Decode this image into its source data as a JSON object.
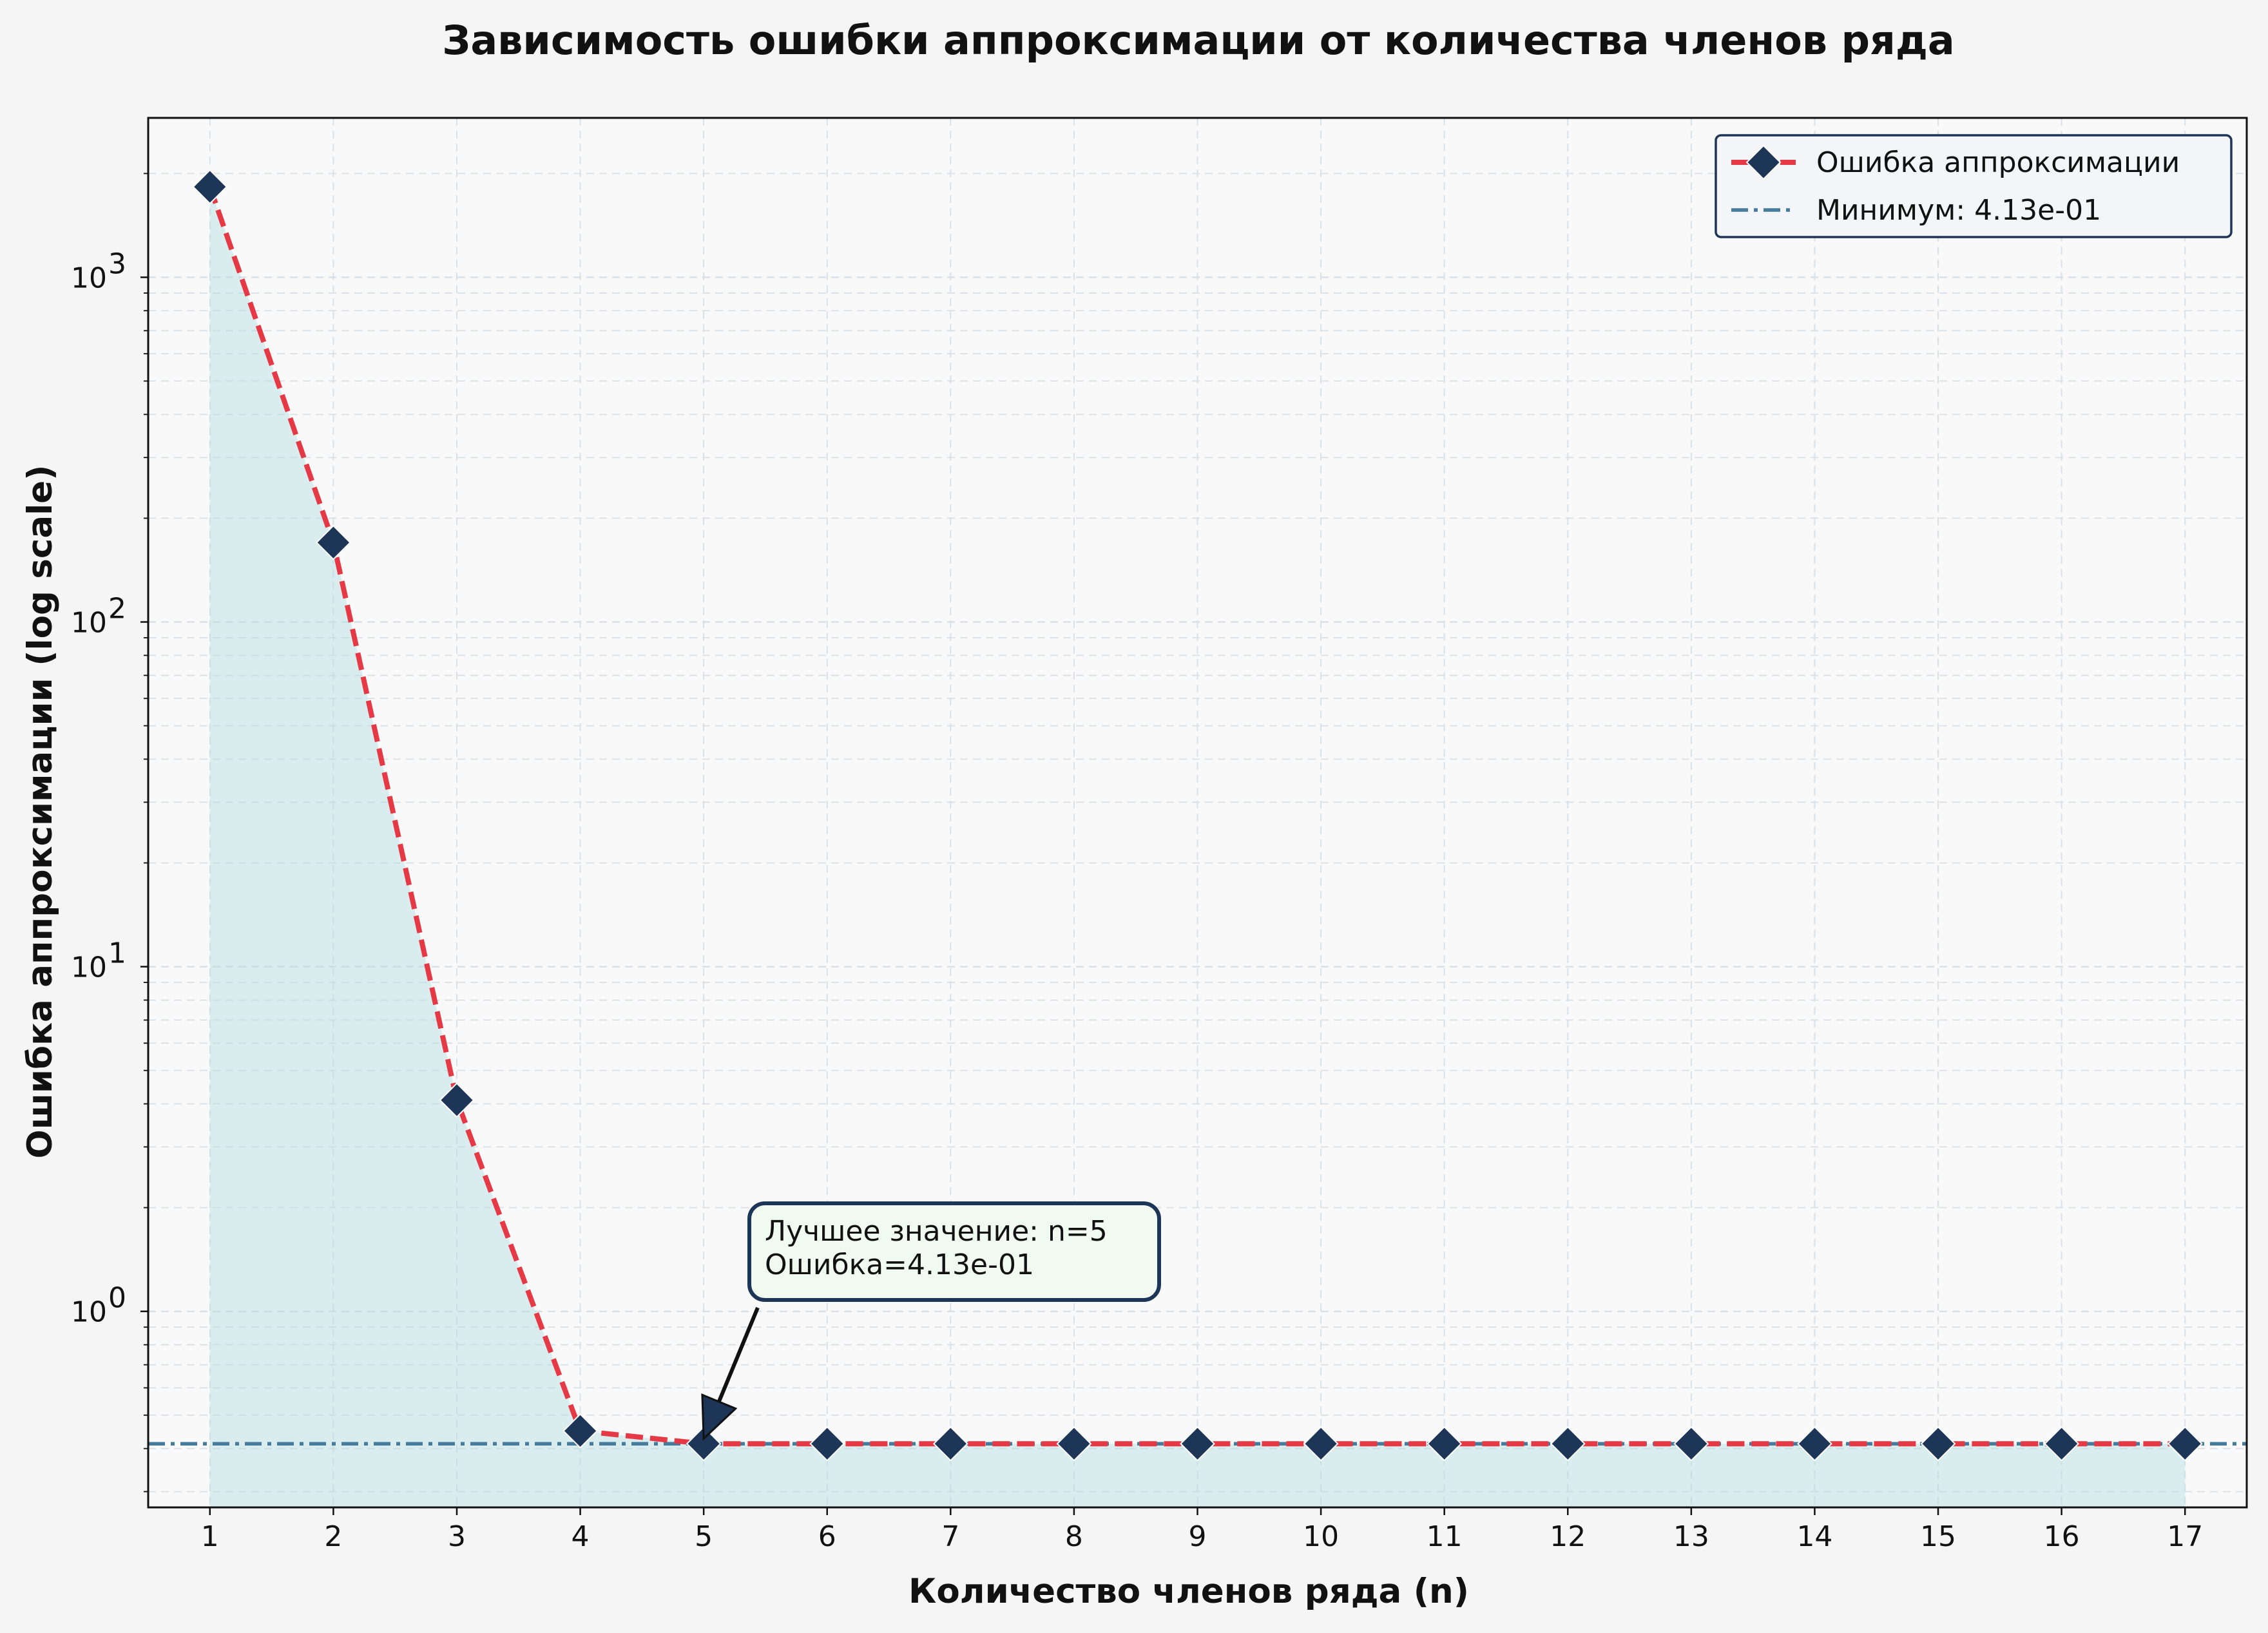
{
  "chart_data": {
    "type": "line",
    "title": "Зависимость ошибки аппроксимации от количества членов ряда",
    "xlabel": "Количество членов ряда (n)",
    "ylabel": "Ошибка аппроксимации (log scale)",
    "yscale": "log",
    "xlim": [
      0.5,
      17.5
    ],
    "ylim": [
      0.27,
      2900
    ],
    "grid": true,
    "legend_position": "top-right",
    "x": [
      1,
      2,
      3,
      4,
      5,
      6,
      7,
      8,
      9,
      10,
      11,
      12,
      13,
      14,
      15,
      16,
      17
    ],
    "x_ticks": [
      "1",
      "2",
      "3",
      "4",
      "5",
      "6",
      "7",
      "8",
      "9",
      "10",
      "11",
      "12",
      "13",
      "14",
      "15",
      "16",
      "17"
    ],
    "y_ticks": [
      {
        "value": 1,
        "base": "10",
        "exp": "0"
      },
      {
        "value": 10,
        "base": "10",
        "exp": "1"
      },
      {
        "value": 100,
        "base": "10",
        "exp": "2"
      },
      {
        "value": 1000,
        "base": "10",
        "exp": "3"
      }
    ],
    "series": [
      {
        "name": "Ошибка аппроксимации",
        "values": [
          1830,
          170,
          4.1,
          0.45,
          0.413,
          0.413,
          0.413,
          0.413,
          0.413,
          0.413,
          0.413,
          0.413,
          0.413,
          0.413,
          0.413,
          0.413,
          0.413
        ],
        "color": "#e63946",
        "marker_color": "#1d3557",
        "fill_color": "#a8dadc"
      }
    ],
    "reference_line": {
      "name": "Минимум: 4.13e-01",
      "value": 0.413,
      "color": "#457b9d"
    },
    "annotation": {
      "lines": [
        "Лучшее значение: n=5",
        "Ошибка=4.13e-01"
      ],
      "x": 5,
      "y": 0.413
    }
  },
  "colors": {
    "background": "#f5f5f5",
    "plot_background": "#f9f9f9",
    "grid": "#d8e0e8",
    "annotation_box_fill": "#f0faf0",
    "annotation_box_stroke": "#1d3557"
  }
}
